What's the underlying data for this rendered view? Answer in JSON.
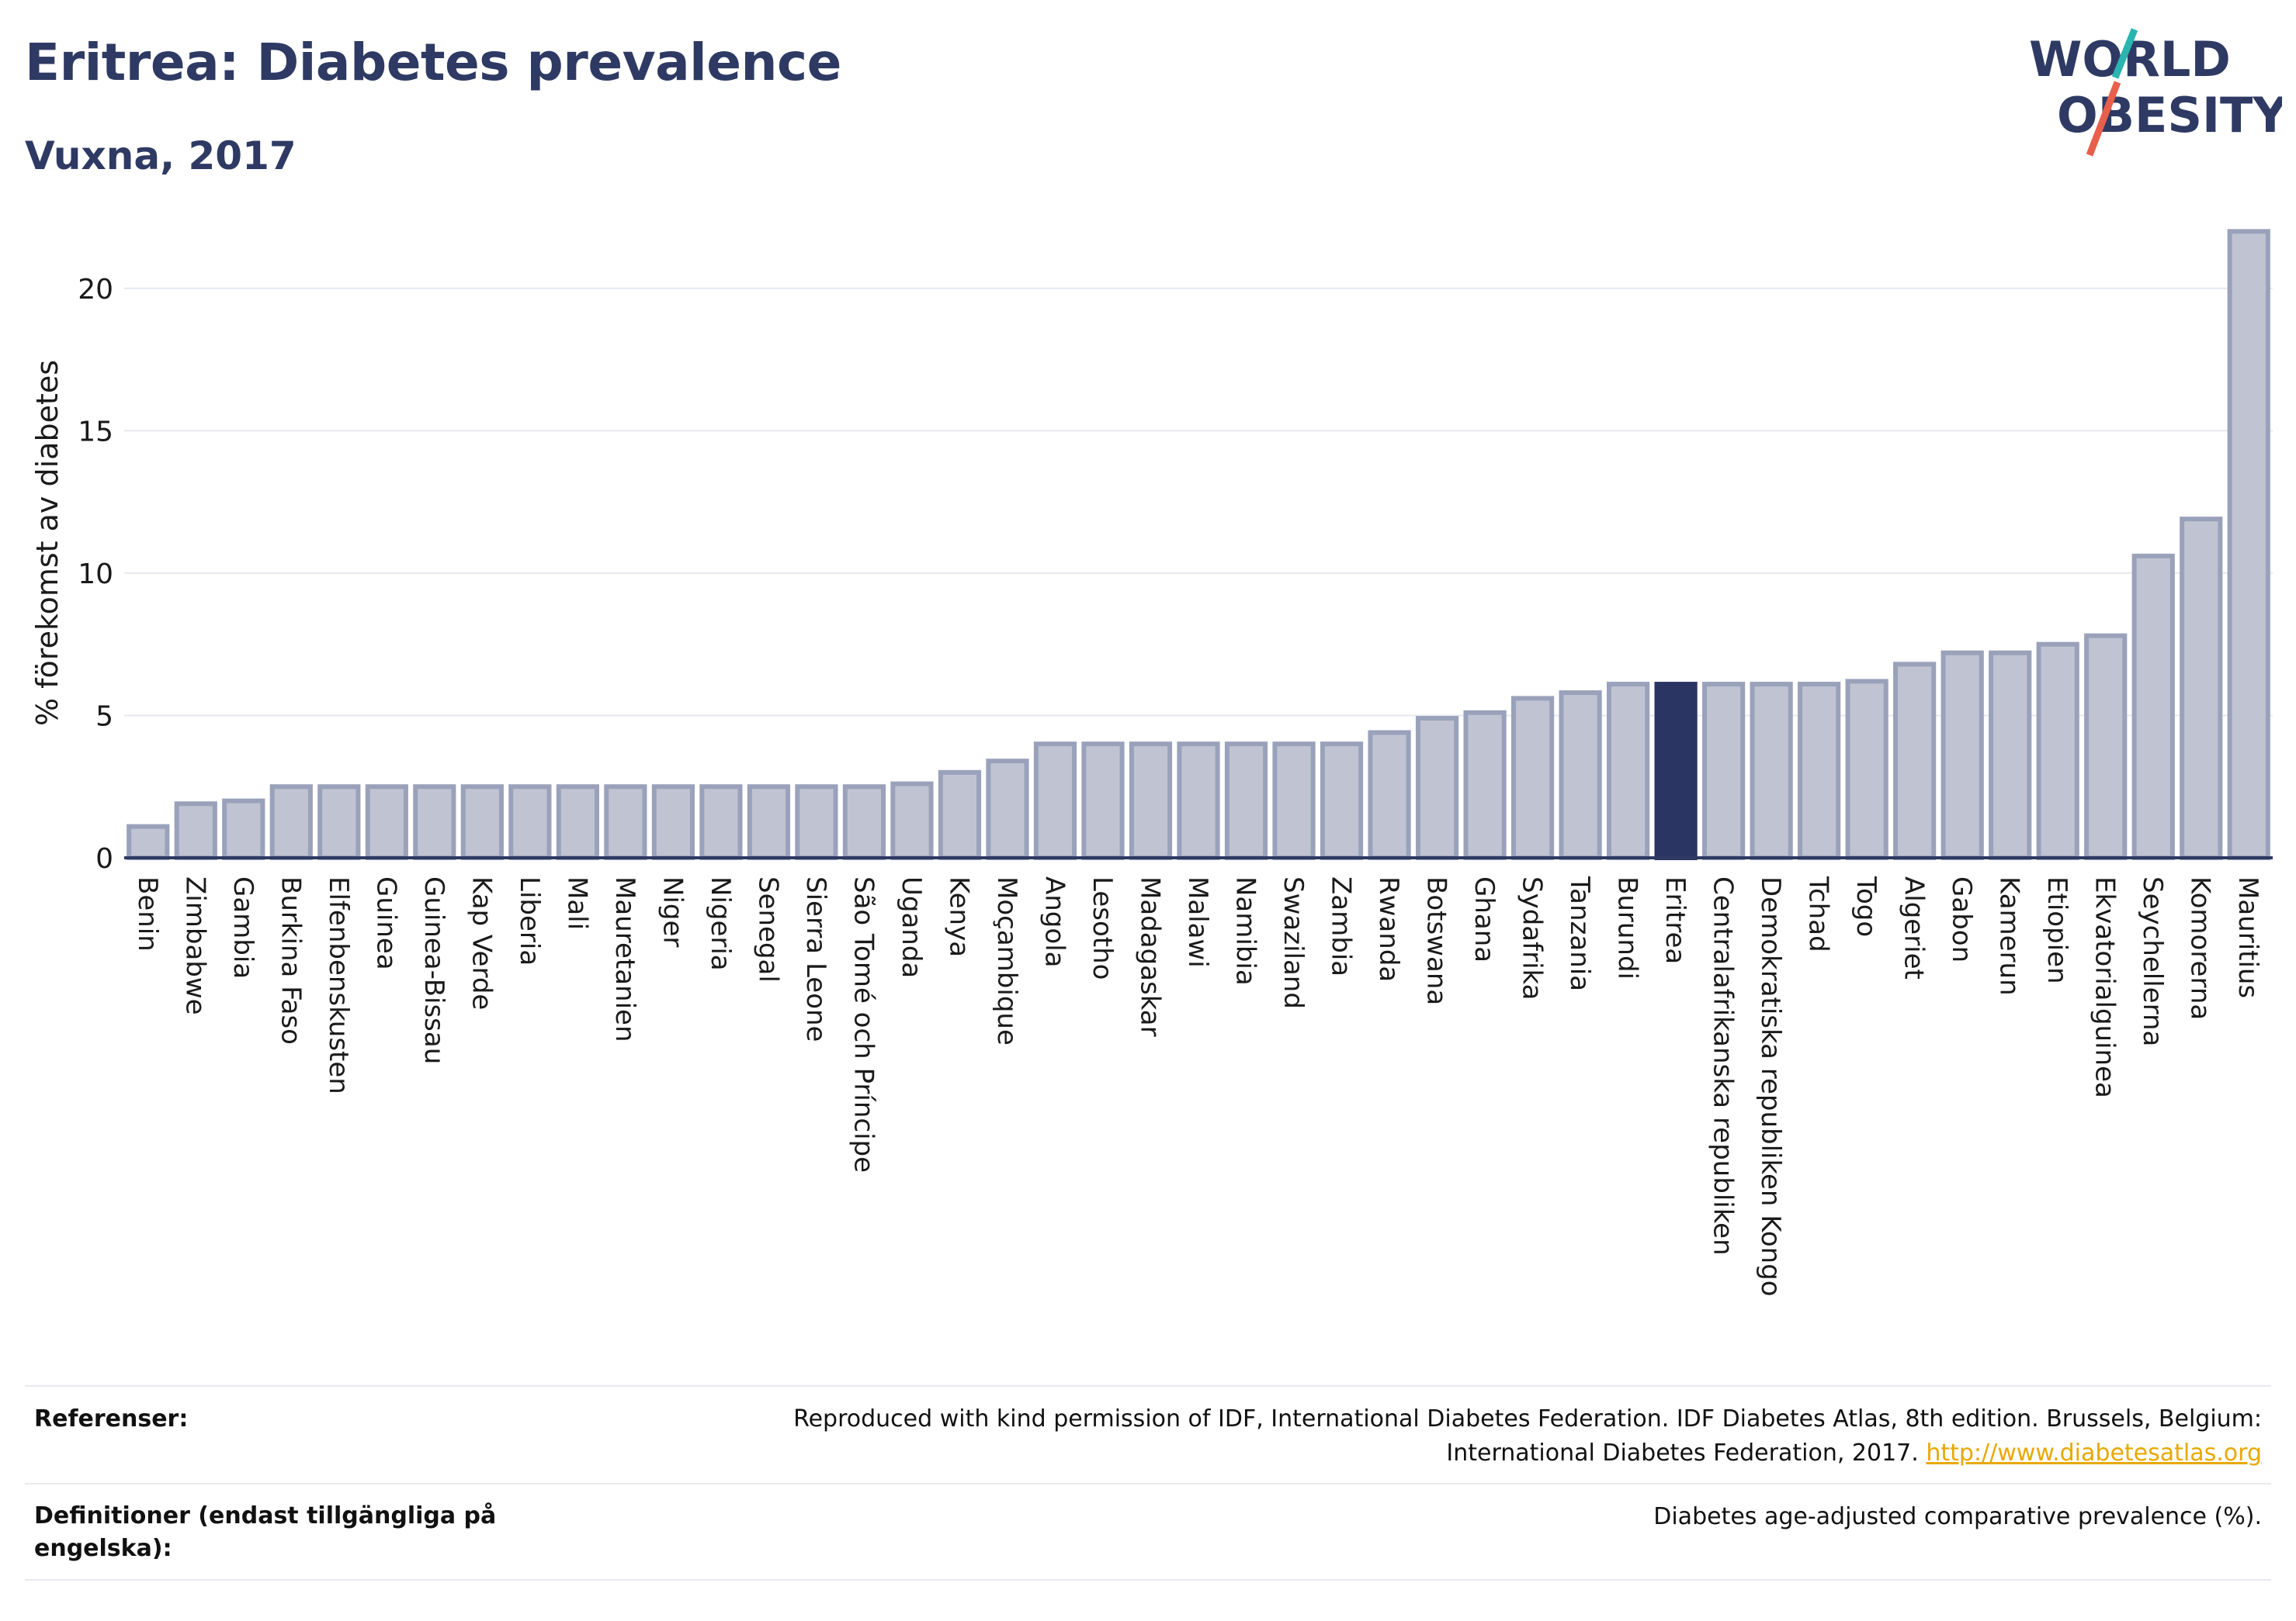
{
  "header": {
    "title": "Eritrea: Diabetes prevalence",
    "subtitle": "Vuxna, 2017"
  },
  "logo": {
    "line1": "WORLD",
    "line2": "OBESITY",
    "text_color": "#2e3a63",
    "accent_teal": "#2ab5b0",
    "accent_red": "#e8604c"
  },
  "chart_data": {
    "type": "bar",
    "ylabel": "% förekomst av diabetes",
    "xlabel": "",
    "ylim": [
      0,
      22.5
    ],
    "yticks": [
      0,
      5,
      10,
      15,
      20
    ],
    "grid": true,
    "highlight": "Eritrea",
    "colors": {
      "bar_fill": "#c0c4d2",
      "bar_stroke": "#9aa1ba",
      "highlight_fill": "#2a3563",
      "axis": "#2e3a63",
      "grid": "#e6e8ef"
    },
    "categories": [
      "Benin",
      "Zimbabwe",
      "Gambia",
      "Burkina Faso",
      "Elfenbenskusten",
      "Guinea",
      "Guinea-Bissau",
      "Kap Verde",
      "Liberia",
      "Mali",
      "Mauretanien",
      "Niger",
      "Nigeria",
      "Senegal",
      "Sierra Leone",
      "São Tomé och Príncipe",
      "Uganda",
      "Kenya",
      "Moçambique",
      "Angola",
      "Lesotho",
      "Madagaskar",
      "Malawi",
      "Namibia",
      "Swaziland",
      "Zambia",
      "Rwanda",
      "Botswana",
      "Ghana",
      "Sydafrika",
      "Tanzania",
      "Burundi",
      "Eritrea",
      "Centralafrikanska republiken",
      "Demokratiska republiken Kongo",
      "Tchad",
      "Togo",
      "Algeriet",
      "Gabon",
      "Kamerun",
      "Etiopien",
      "Ekvatorialguinea",
      "Seychellerna",
      "Komorerna",
      "Mauritius"
    ],
    "values": [
      1.1,
      1.9,
      2.0,
      2.5,
      2.5,
      2.5,
      2.5,
      2.5,
      2.5,
      2.5,
      2.5,
      2.5,
      2.5,
      2.5,
      2.5,
      2.5,
      2.6,
      3.0,
      3.4,
      4.0,
      4.0,
      4.0,
      4.0,
      4.0,
      4.0,
      4.0,
      4.4,
      4.9,
      5.1,
      5.6,
      5.8,
      6.1,
      6.1,
      6.1,
      6.1,
      6.1,
      6.2,
      6.8,
      7.2,
      7.2,
      7.5,
      7.8,
      10.6,
      11.9,
      22.0
    ]
  },
  "footer": {
    "references_label": "Referenser:",
    "references_text_1": "Reproduced with kind permission of IDF, International Diabetes Federation. IDF Diabetes Atlas, 8th edition. Brussels, Belgium:",
    "references_text_2": "International Diabetes Federation, 2017.",
    "references_link": "http://www.diabetesatlas.org",
    "definitions_label": "Definitioner (endast tillgängliga på engelska):",
    "definitions_text": "Diabetes age-adjusted comparative prevalence (%)."
  }
}
